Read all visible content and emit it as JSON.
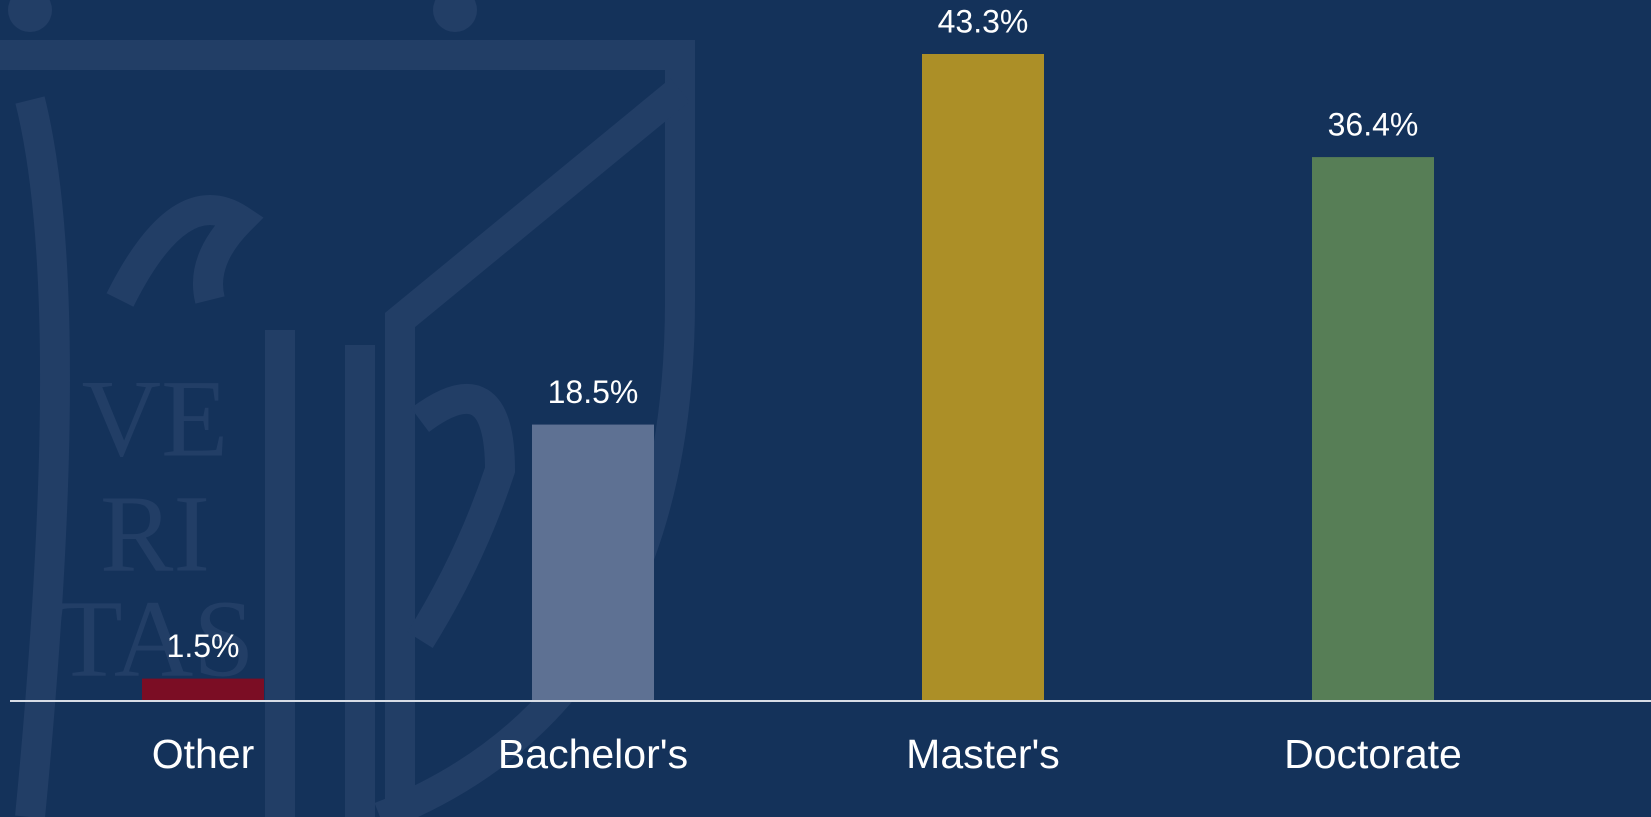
{
  "chart_data": {
    "type": "bar",
    "categories": [
      "Other",
      "Bachelor's",
      "Master's",
      "Doctorate"
    ],
    "values": [
      1.5,
      18.5,
      43.3,
      36.4
    ],
    "value_labels": [
      "1.5%",
      "18.5%",
      "43.3%",
      "36.4%"
    ],
    "colors": [
      "#7b0d24",
      "#5e7193",
      "#ac8f27",
      "#577e56"
    ]
  },
  "watermark": [
    "VE",
    "RI",
    "TAS"
  ]
}
